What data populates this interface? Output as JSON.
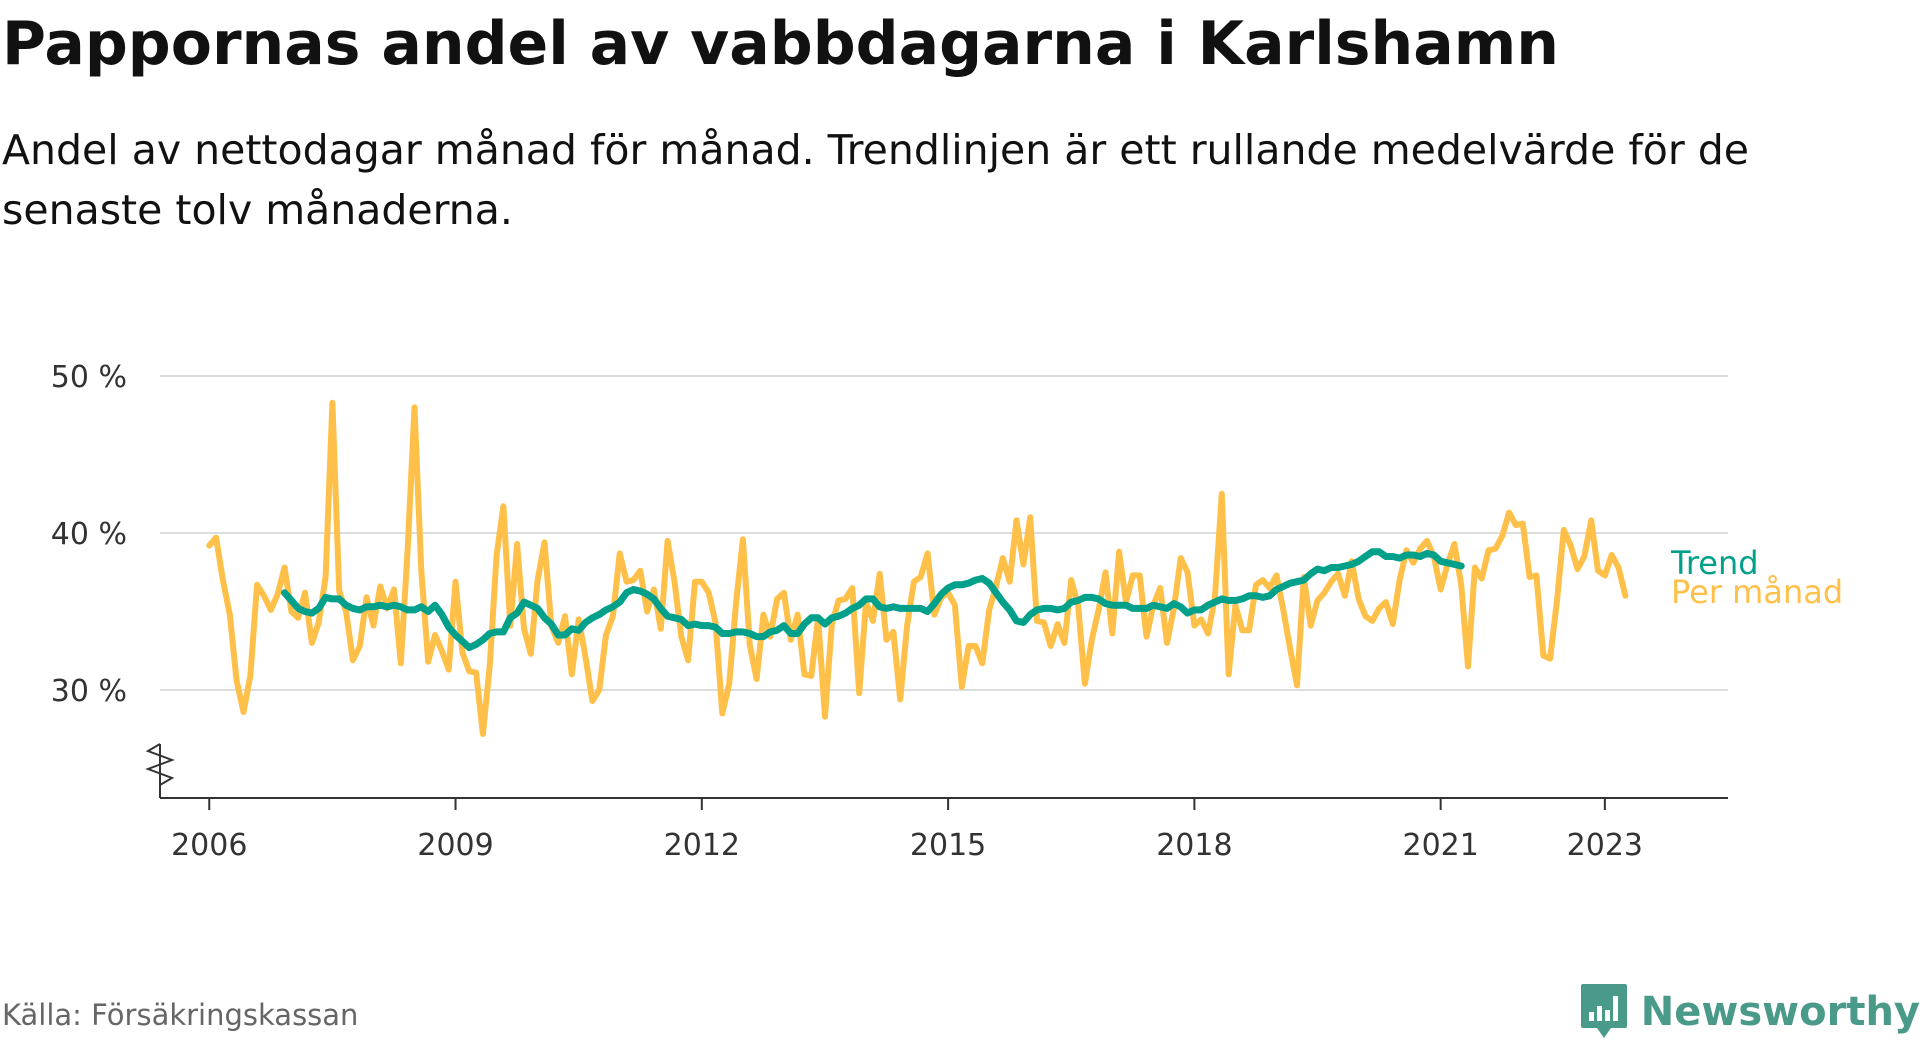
{
  "title": "Pappornas andel av vabbdagarna i Karlshamn",
  "subtitle": "Andel av nettodagar månad för månad. Trendlinjen är ett rullande medelvärde för de senaste tolv månaderna.",
  "source": "Källa: Försäkringskassan",
  "brand": {
    "name": "Newsworthy",
    "icon": "newsworthy-logo-icon"
  },
  "colors": {
    "monthly": "#FFC04A",
    "trend": "#00A08A",
    "grid": "#DDDDDD",
    "axis": "#333333",
    "brand": "#4A9A8A"
  },
  "chart_data": {
    "type": "line",
    "title": "Pappornas andel av vabbdagarna i Karlshamn",
    "xlabel": "",
    "ylabel": "",
    "x_start": "2006-01",
    "x_range": [
      2005.4,
      2024.5
    ],
    "ylim": [
      23,
      50
    ],
    "y_ticks": [
      30,
      40,
      50
    ],
    "y_tick_labels": [
      "30 %",
      "40 %",
      "50 %"
    ],
    "axis_break": true,
    "x_ticks": [
      2006,
      2009,
      2012,
      2015,
      2018,
      2021,
      2023
    ],
    "x_tick_labels": [
      "2006",
      "2009",
      "2012",
      "2015",
      "2018",
      "2021",
      "2023"
    ],
    "grid": true,
    "series": [
      {
        "name": "Per månad",
        "color": "#FFC04A",
        "values": [
          39.2,
          39.7,
          37,
          34.8,
          30.6,
          28.6,
          30.9,
          36.7,
          36,
          35.1,
          36.1,
          37.8,
          35,
          34.6,
          36.2,
          33,
          34.3,
          37.2,
          48.3,
          36.3,
          35,
          31.9,
          32.8,
          35.9,
          34.1,
          36.6,
          35.2,
          36.4,
          31.7,
          39,
          48,
          37.6,
          31.8,
          33.5,
          32.5,
          31.3,
          36.9,
          32.4,
          31.2,
          31.1,
          27.2,
          31.5,
          38.6,
          41.7,
          34.1,
          39.3,
          33.9,
          32.3,
          37,
          39.4,
          34.1,
          33,
          34.7,
          31,
          34.5,
          32.1,
          29.3,
          30,
          33.5,
          34.7,
          38.7,
          36.9,
          37,
          37.6,
          35,
          36.4,
          33.9,
          39.5,
          36.9,
          33.4,
          31.9,
          36.9,
          36.9,
          36.2,
          34.3,
          28.5,
          30.4,
          35.5,
          39.6,
          32.9,
          30.7,
          34.8,
          33.4,
          35.8,
          36.2,
          33.2,
          34.8,
          31,
          30.9,
          34.6,
          28.3,
          34.2,
          35.7,
          35.8,
          36.5,
          29.8,
          35.6,
          34.4,
          37.4,
          33.2,
          33.7,
          29.4,
          34.1,
          36.9,
          37.2,
          38.7,
          34.8,
          35.9,
          36.2,
          35.4,
          30.2,
          32.8,
          32.8,
          31.7,
          35.1,
          36.6,
          38.4,
          36.9,
          40.8,
          38,
          41,
          34.4,
          34.3,
          32.8,
          34.2,
          33,
          37,
          35.4,
          30.4,
          33.2,
          35.1,
          37.5,
          33.6,
          38.8,
          35.6,
          37.3,
          37.3,
          33.4,
          35.4,
          36.5,
          33,
          35.2,
          38.4,
          37.5,
          34.1,
          34.5,
          33.6,
          35.9,
          42.5,
          31,
          35.4,
          33.8,
          33.8,
          36.7,
          37,
          36.5,
          37.3,
          35.1,
          32.6,
          30.3,
          37.2,
          34.1,
          35.7,
          36.2,
          36.9,
          37.4,
          36,
          38.2,
          35.8,
          34.7,
          34.4,
          35.2,
          35.6,
          34.2,
          37,
          38.9,
          38.1,
          39,
          39.5,
          38.5,
          36.4,
          38,
          39.3,
          36.7,
          31.5,
          37.8,
          37.1,
          38.9,
          39,
          39.8,
          41.3,
          40.5,
          40.6,
          37.2,
          37.3,
          32.2,
          32,
          35.7,
          40.2,
          39.2,
          37.7,
          38.5,
          40.8,
          37.6,
          37.3,
          38.6,
          37.8,
          36
        ]
      },
      {
        "name": "Trend",
        "color": "#00A08A",
        "x_start": "2006-12",
        "values": [
          36.2,
          35.7,
          35.2,
          35,
          34.9,
          35.2,
          35.9,
          35.8,
          35.8,
          35.4,
          35.2,
          35.1,
          35.3,
          35.3,
          35.4,
          35.3,
          35.4,
          35.3,
          35.1,
          35.1,
          35.3,
          35,
          35.4,
          34.8,
          34,
          33.5,
          33.1,
          32.7,
          32.9,
          33.2,
          33.6,
          33.7,
          33.7,
          34.6,
          34.9,
          35.6,
          35.4,
          35.2,
          34.6,
          34.2,
          33.5,
          33.5,
          33.9,
          33.8,
          34.3,
          34.6,
          34.8,
          35.1,
          35.3,
          35.6,
          36.2,
          36.4,
          36.3,
          36.1,
          35.8,
          35.2,
          34.7,
          34.6,
          34.5,
          34.1,
          34.2,
          34.1,
          34.1,
          34,
          33.6,
          33.6,
          33.7,
          33.7,
          33.6,
          33.4,
          33.4,
          33.7,
          33.8,
          34.1,
          33.6,
          33.6,
          34.2,
          34.6,
          34.6,
          34.2,
          34.6,
          34.7,
          34.9,
          35.2,
          35.4,
          35.8,
          35.8,
          35.3,
          35.2,
          35.3,
          35.2,
          35.2,
          35.2,
          35.2,
          35,
          35.5,
          36.1,
          36.5,
          36.7,
          36.7,
          36.8,
          37,
          37.1,
          36.8,
          36.2,
          35.6,
          35.1,
          34.4,
          34.3,
          34.8,
          35.1,
          35.2,
          35.2,
          35.1,
          35.2,
          35.6,
          35.7,
          35.9,
          35.9,
          35.8,
          35.5,
          35.4,
          35.4,
          35.4,
          35.2,
          35.2,
          35.2,
          35.4,
          35.3,
          35.2,
          35.5,
          35.3,
          34.9,
          35.1,
          35.1,
          35.4,
          35.6,
          35.8,
          35.7,
          35.7,
          35.8,
          36,
          36,
          35.9,
          36,
          36.4,
          36.6,
          36.8,
          36.9,
          37,
          37.4,
          37.7,
          37.6,
          37.8,
          37.8,
          37.9,
          38,
          38.2,
          38.5,
          38.8,
          38.8,
          38.5,
          38.5,
          38.4,
          38.6,
          38.6,
          38.5,
          38.7,
          38.6,
          38.2,
          38.1,
          38,
          37.9
        ]
      }
    ]
  }
}
